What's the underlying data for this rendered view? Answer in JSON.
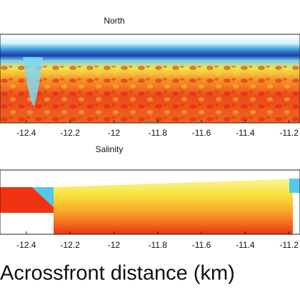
{
  "chart_data": {
    "type": "heatmap",
    "x_label": "Acrossfront distance (km)",
    "panels": [
      {
        "title": "North"
      },
      {
        "title": "Salinity"
      }
    ],
    "xlim": [
      -12.52,
      -11.15
    ],
    "xticks": [
      -12.4,
      -12.2,
      -12,
      -11.8,
      -11.6,
      -11.4,
      -11.2
    ]
  }
}
